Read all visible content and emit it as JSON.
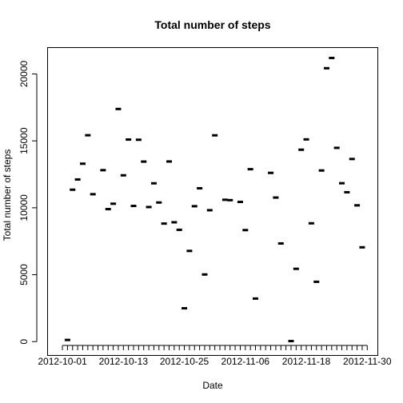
{
  "chart_data": {
    "type": "scatter",
    "title": "Total number of steps",
    "xlabel": "Date",
    "ylabel": "Total number of steps",
    "x_tick_labels": [
      "2012-10-01",
      "2012-10-13",
      "2012-10-25",
      "2012-11-06",
      "2012-11-18",
      "2012-11-30"
    ],
    "y_tick_labels": [
      "0",
      "5000",
      "10000",
      "15000",
      "20000"
    ],
    "y_ticks": [
      0,
      5000,
      10000,
      15000,
      20000
    ],
    "x": [
      "2012-10-02",
      "2012-10-03",
      "2012-10-04",
      "2012-10-05",
      "2012-10-06",
      "2012-10-07",
      "2012-10-09",
      "2012-10-10",
      "2012-10-11",
      "2012-10-12",
      "2012-10-13",
      "2012-10-14",
      "2012-10-15",
      "2012-10-16",
      "2012-10-17",
      "2012-10-18",
      "2012-10-19",
      "2012-10-20",
      "2012-10-21",
      "2012-10-22",
      "2012-10-23",
      "2012-10-24",
      "2012-10-25",
      "2012-10-26",
      "2012-10-27",
      "2012-10-28",
      "2012-10-29",
      "2012-10-30",
      "2012-10-31",
      "2012-11-02",
      "2012-11-03",
      "2012-11-05",
      "2012-11-06",
      "2012-11-07",
      "2012-11-08",
      "2012-11-11",
      "2012-11-12",
      "2012-11-13",
      "2012-11-15",
      "2012-11-16",
      "2012-11-17",
      "2012-11-18",
      "2012-11-19",
      "2012-11-20",
      "2012-11-21",
      "2012-11-22",
      "2012-11-23",
      "2012-11-24",
      "2012-11-25",
      "2012-11-26",
      "2012-11-27",
      "2012-11-28",
      "2012-11-29"
    ],
    "y": [
      126,
      11352,
      12116,
      13294,
      15420,
      11015,
      12811,
      9900,
      10304,
      17382,
      12426,
      15098,
      10139,
      15084,
      13452,
      10056,
      11829,
      10395,
      8821,
      13460,
      8918,
      8355,
      2492,
      6778,
      10119,
      11458,
      5018,
      9819,
      15414,
      10600,
      10571,
      10439,
      8334,
      12883,
      3219,
      12608,
      10765,
      7336,
      41,
      5441,
      14339,
      15110,
      8841,
      4472,
      12787,
      20427,
      21194,
      14478,
      11834,
      11162,
      13646,
      10183,
      7047
    ],
    "xlim": [
      "2012-09-28",
      "2012-12-02"
    ],
    "ylim": [
      -1000,
      22000
    ],
    "grid": false,
    "marker": "filled dash",
    "colors": {
      "points": "#000000",
      "axes": "#000000",
      "background": "#ffffff"
    }
  }
}
